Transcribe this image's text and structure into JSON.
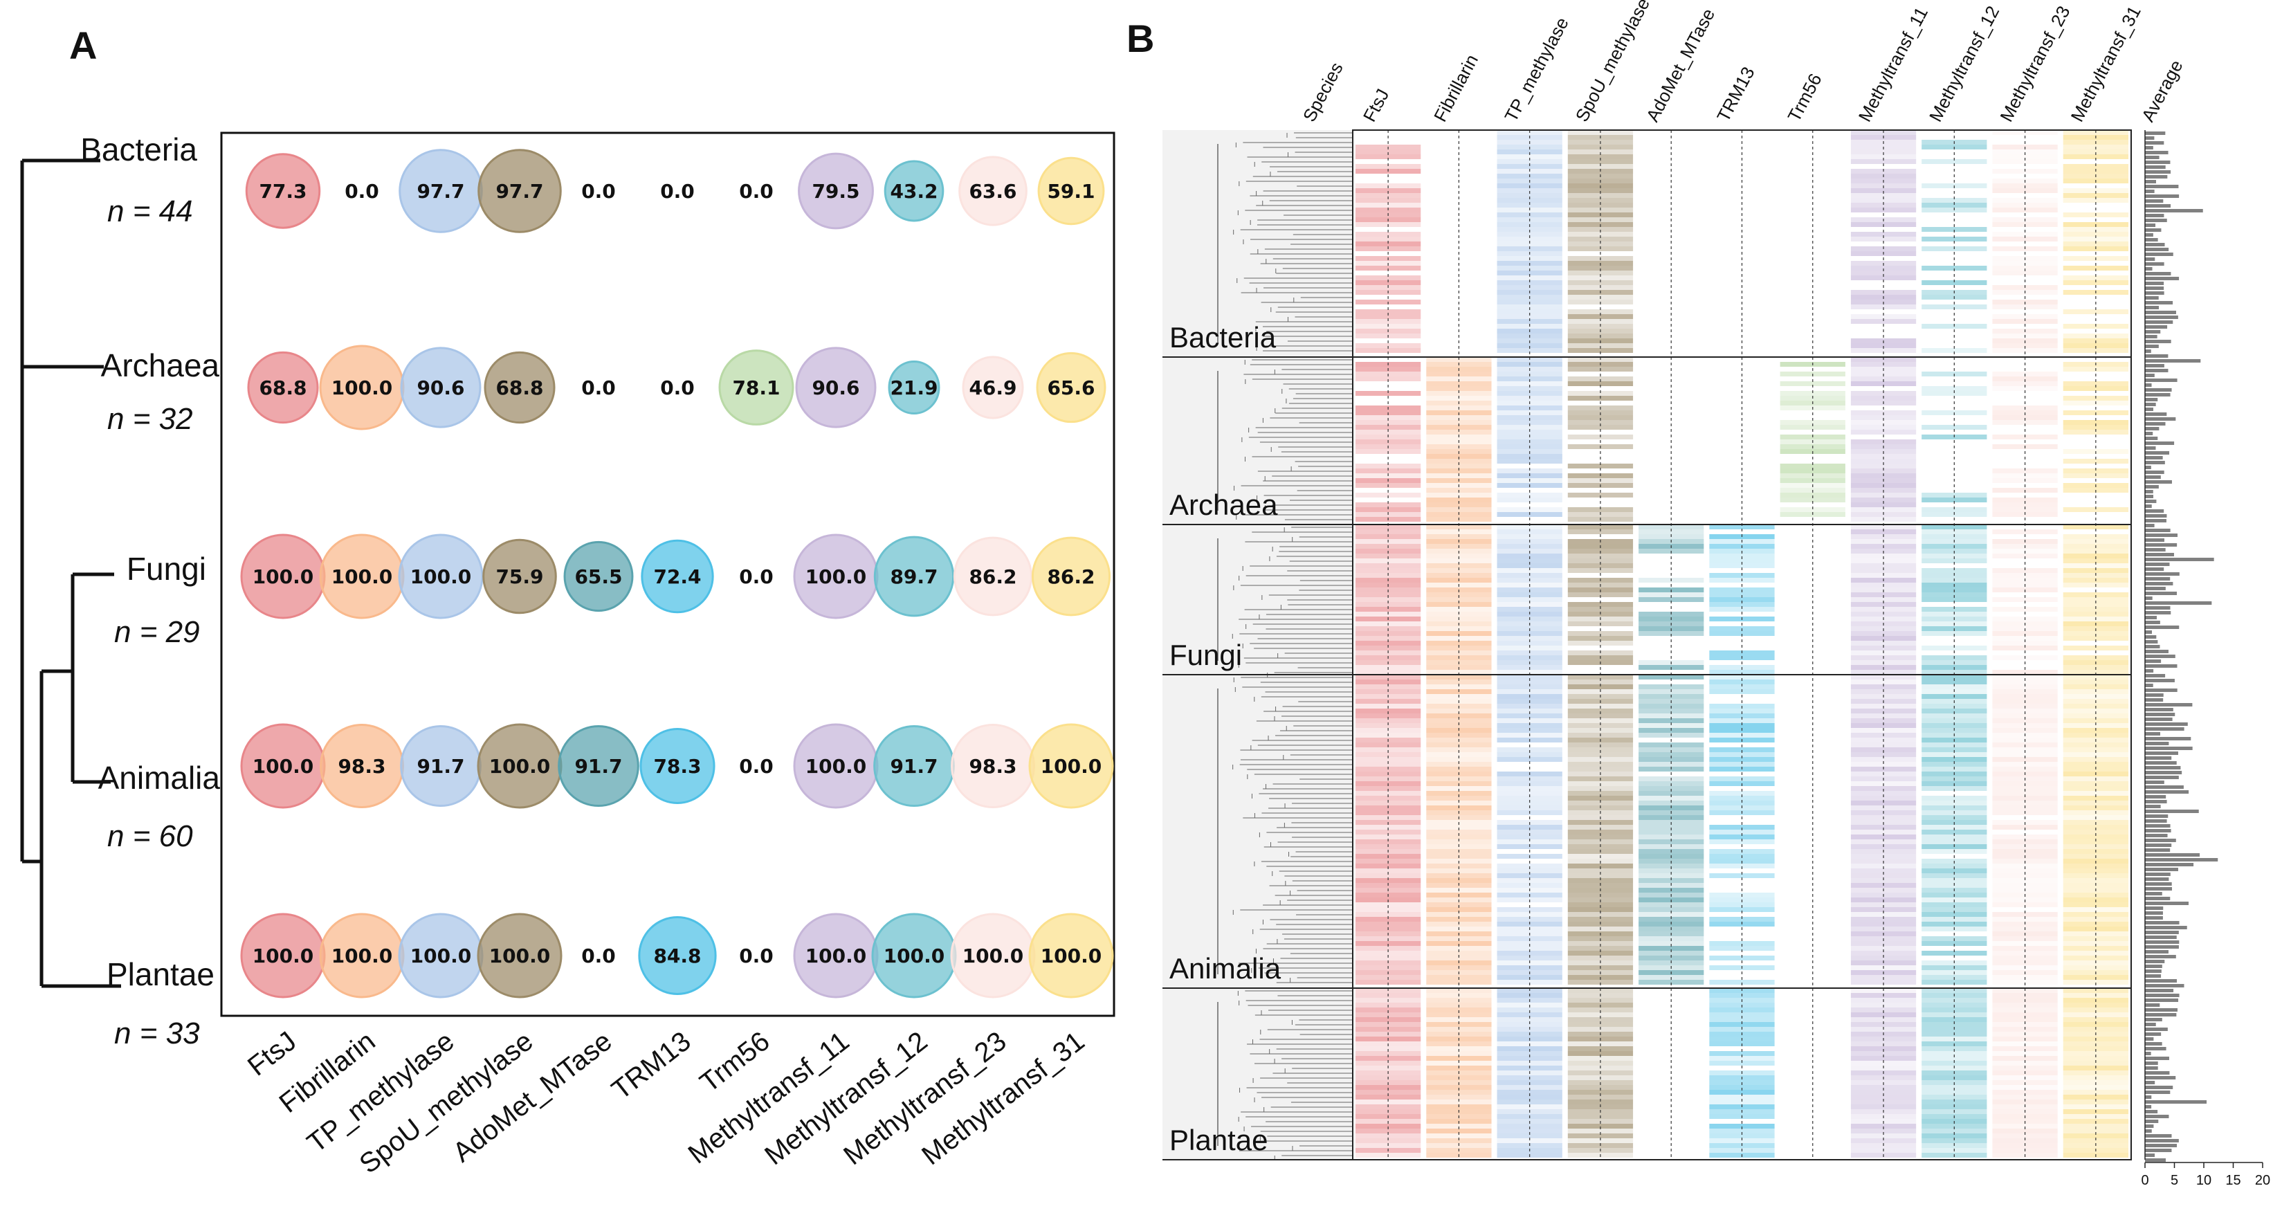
{
  "panel_a": {
    "letter": "A"
  },
  "panel_b": {
    "letter": "B"
  },
  "chart_data": [
    {
      "type": "bubble-heatmap",
      "title": "",
      "categories": [
        "FtsJ",
        "Fibrillarin",
        "TP_methylase",
        "SpoU_methylase",
        "AdoMet_MTase",
        "TRM13",
        "Trm56",
        "Methyltransf_11",
        "Methyltransf_12",
        "Methyltransf_23",
        "Methyltransf_31"
      ],
      "colors": [
        "#e8868a",
        "#f9b98c",
        "#a9c5e8",
        "#9c8b68",
        "#5aa3ae",
        "#4ec0e6",
        "#b9d9a6",
        "#c6b6d9",
        "#6cc1cf",
        "#fbe3df",
        "#fbe08c"
      ],
      "rows": [
        {
          "name": "Bacteria",
          "n_label": "n = 44",
          "values": [
            77.3,
            0.0,
            97.7,
            97.7,
            0.0,
            0.0,
            0.0,
            79.5,
            43.2,
            63.6,
            59.1
          ],
          "labels": [
            "77.3",
            "0.0",
            "97.7",
            "97.7",
            "0.0",
            "0.0",
            "0.0",
            "79.5",
            "43.2",
            "63.6",
            "59.1"
          ]
        },
        {
          "name": "Archaea",
          "n_label": "n = 32",
          "values": [
            68.8,
            100.0,
            90.6,
            68.8,
            0.0,
            0.0,
            78.1,
            90.6,
            21.9,
            46.9,
            65.6
          ],
          "labels": [
            "68.8",
            "100.0",
            "90.6",
            "68.8",
            "0.0",
            "0.0",
            "78.1",
            "90.6",
            "21.9",
            "46.9",
            "65.6"
          ]
        },
        {
          "name": "Fungi",
          "n_label": "n = 29",
          "values": [
            100.0,
            100.0,
            100.0,
            75.9,
            65.5,
            72.4,
            0.0,
            100.0,
            89.7,
            86.2,
            86.2
          ],
          "labels": [
            "100.0",
            "100.0",
            "100.0",
            "75.9",
            "65.5",
            "72.4",
            "0.0",
            "100.0",
            "89.7",
            "86.2",
            "86.2"
          ]
        },
        {
          "name": "Animalia",
          "n_label": "n = 60",
          "values": [
            100.0,
            98.3,
            91.7,
            100.0,
            91.7,
            78.3,
            0.0,
            100.0,
            91.7,
            98.3,
            100.0
          ],
          "labels": [
            "100.0",
            "98.3",
            "91.7",
            "100.0",
            "91.7",
            "78.3",
            "0.0",
            "100.0",
            "91.7",
            "98.3",
            "100.0"
          ]
        },
        {
          "name": "Plantae",
          "n_label": "n = 33",
          "values": [
            100.0,
            100.0,
            100.0,
            100.0,
            0.0,
            84.8,
            0.0,
            100.0,
            100.0,
            100.0,
            100.0
          ],
          "labels": [
            "100.0",
            "100.0",
            "100.0",
            "100.0",
            "0.0",
            "84.8",
            "0.0",
            "100.0",
            "100.0",
            "100.0",
            "100.0"
          ]
        }
      ]
    },
    {
      "type": "heatmap",
      "title": "",
      "species_header": "Species",
      "columns": [
        "FtsJ",
        "Fibrillarin",
        "TP_methylase",
        "SpoU_methylase",
        "AdoMet_MTase",
        "TRM13",
        "Trm56",
        "Methyltransf_11",
        "Methyltransf_12",
        "Methyltransf_23",
        "Methyltransf_31"
      ],
      "average_header": "Average",
      "groups": [
        "Bacteria",
        "Archaea",
        "Fungi",
        "Animalia",
        "Plantae"
      ],
      "group_counts": [
        44,
        32,
        29,
        60,
        33
      ],
      "average_axis": {
        "ticks": [
          "0",
          "5",
          "10",
          "15",
          "20"
        ],
        "range": [
          0,
          20
        ]
      }
    }
  ]
}
